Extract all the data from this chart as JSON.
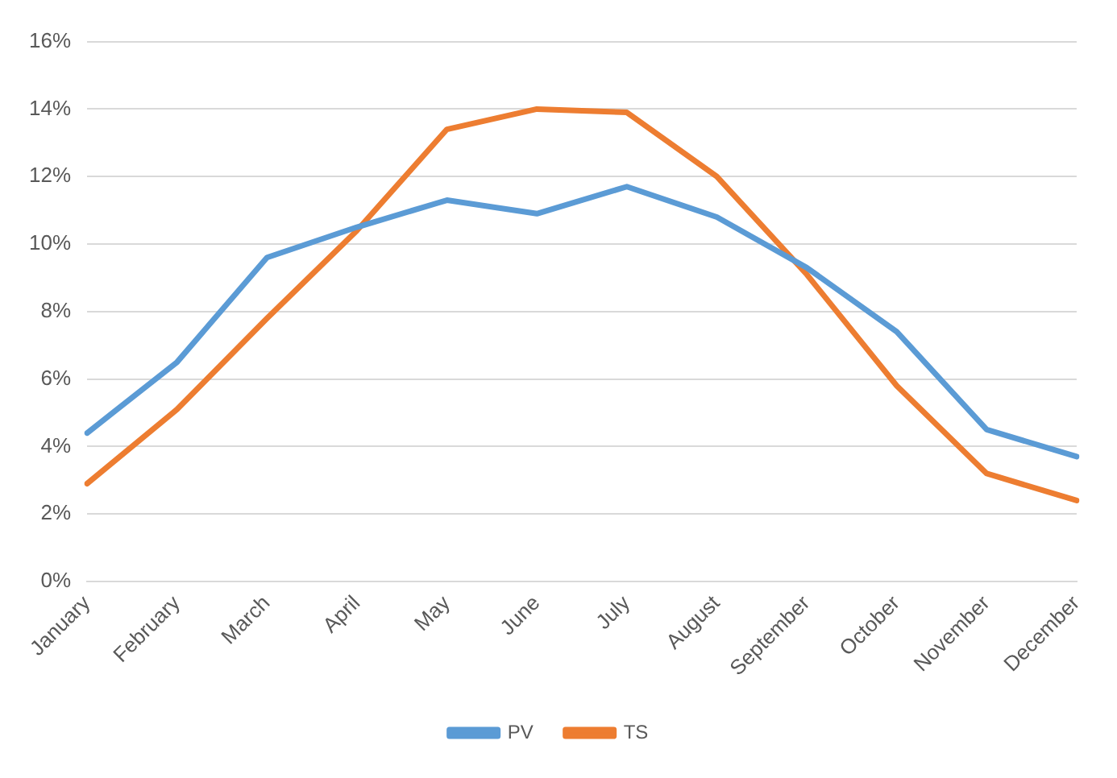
{
  "chart_data": {
    "type": "line",
    "categories": [
      "January",
      "February",
      "March",
      "April",
      "May",
      "June",
      "July",
      "August",
      "September",
      "October",
      "November",
      "December"
    ],
    "series": [
      {
        "name": "PV",
        "color": "#5b9bd5",
        "values": [
          4.4,
          6.5,
          9.6,
          10.5,
          11.3,
          10.9,
          11.7,
          10.8,
          9.3,
          7.4,
          4.5,
          3.7
        ]
      },
      {
        "name": "TS",
        "color": "#ed7d31",
        "values": [
          2.9,
          5.1,
          7.8,
          10.4,
          13.4,
          14.0,
          13.9,
          12.0,
          9.1,
          5.8,
          3.2,
          2.4
        ]
      }
    ],
    "ylim": [
      0,
      16
    ],
    "yticks": [
      {
        "value": 0,
        "label": "0%"
      },
      {
        "value": 2,
        "label": "2%"
      },
      {
        "value": 4,
        "label": "4%"
      },
      {
        "value": 6,
        "label": "6%"
      },
      {
        "value": 8,
        "label": "8%"
      },
      {
        "value": 10,
        "label": "10%"
      },
      {
        "value": 12,
        "label": "12%"
      },
      {
        "value": 14,
        "label": "14%"
      },
      {
        "value": 16,
        "label": "16%"
      }
    ],
    "grid": "y",
    "legend": "bottom",
    "marker": "none",
    "line_style": "solid"
  }
}
